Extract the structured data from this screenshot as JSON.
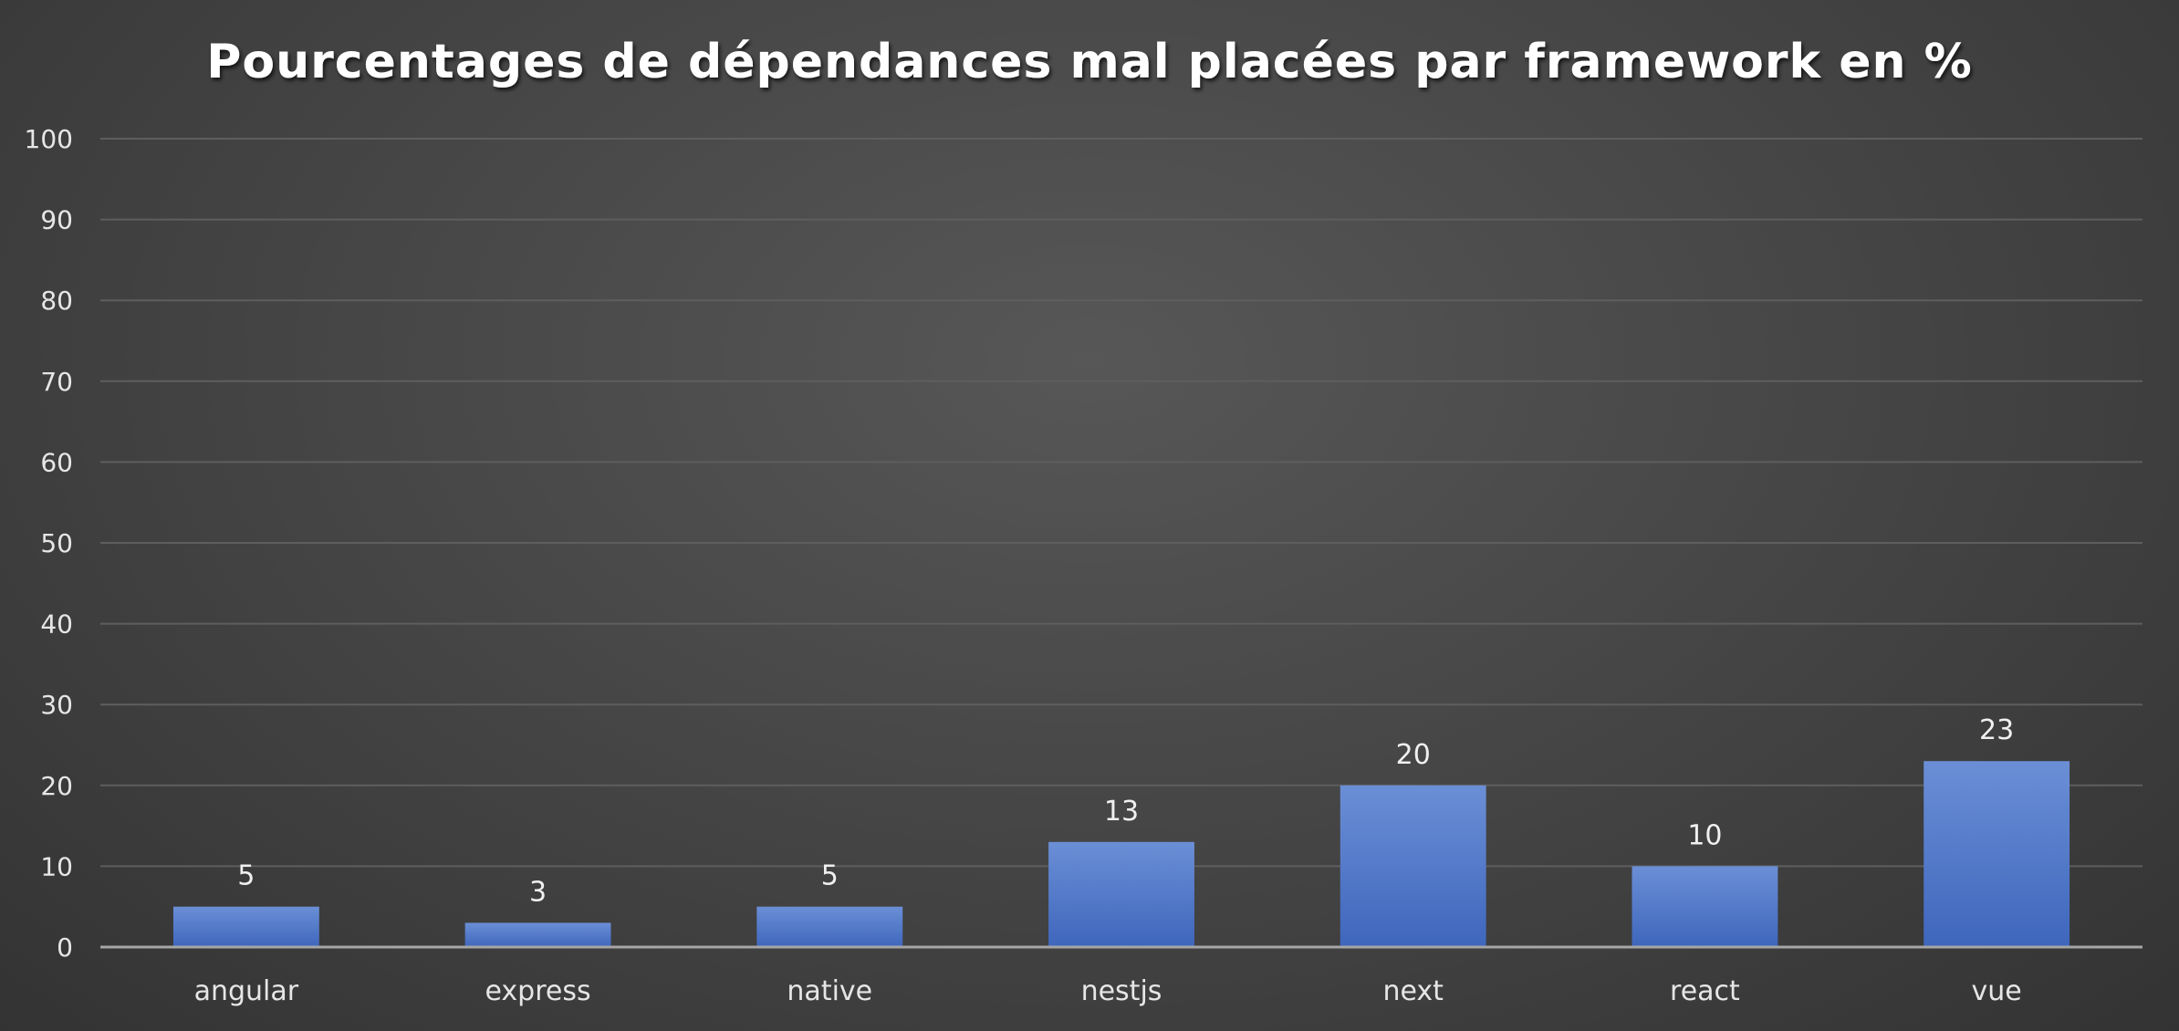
{
  "chart_data": {
    "type": "bar",
    "title": "Pourcentages de dépendances mal placées par framework en %",
    "categories": [
      "angular",
      "express",
      "native",
      "nestjs",
      "next",
      "react",
      "vue"
    ],
    "values": [
      5,
      3,
      5,
      13,
      20,
      10,
      23
    ],
    "data_labels": [
      "5",
      "3",
      "5",
      "13",
      "20",
      "10",
      "23"
    ],
    "yticks": [
      "0",
      "10",
      "20",
      "30",
      "40",
      "50",
      "60",
      "70",
      "80",
      "90",
      "100"
    ],
    "ylim": [
      0,
      100
    ],
    "grid": true,
    "legend": "none",
    "colors": {
      "bar_top": "#6b8fd6",
      "bar_bottom": "#3e66bc",
      "grid": "#5e5e5e",
      "axis": "#a6a6a6",
      "text": "#e6e6e6",
      "title": "#ffffff"
    }
  }
}
